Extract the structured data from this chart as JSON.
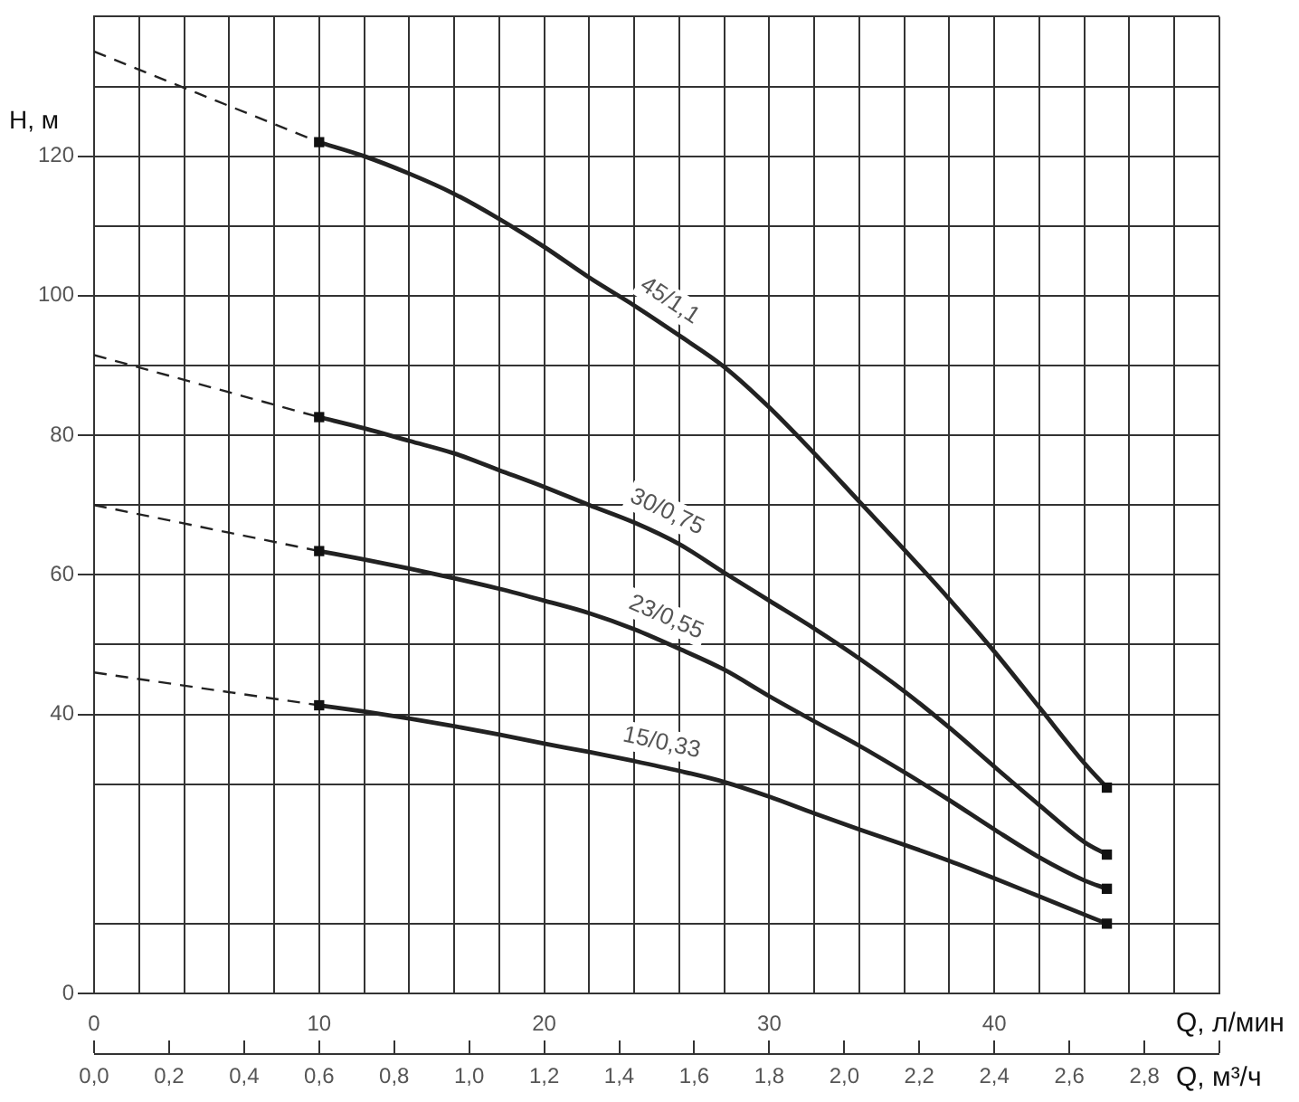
{
  "chart_data": {
    "type": "line",
    "ylabel": "H, м",
    "xlabel": "Q, л/мин",
    "x2label": "Q, м³/ч",
    "xlim": [
      0,
      50
    ],
    "xticks": [
      0,
      {
        "value": 2,
        "label": null
      },
      {
        "value": 4,
        "label": null
      },
      {
        "value": 6,
        "label": null
      },
      {
        "value": 8,
        "label": null
      },
      10,
      {
        "value": 12,
        "label": null
      },
      {
        "value": 14,
        "label": null
      },
      {
        "value": 16,
        "label": null
      },
      {
        "value": 18,
        "label": null
      },
      20,
      {
        "value": 22,
        "label": null
      },
      {
        "value": 24,
        "label": null
      },
      {
        "value": 26,
        "label": null
      },
      {
        "value": 28,
        "label": null
      },
      30,
      {
        "value": 32,
        "label": null
      },
      {
        "value": 34,
        "label": null
      },
      {
        "value": 36,
        "label": null
      },
      {
        "value": 38,
        "label": null
      },
      40,
      {
        "value": 42,
        "label": null
      },
      {
        "value": 44,
        "label": null
      },
      {
        "value": 46,
        "label": null
      },
      {
        "value": 48,
        "label": null
      },
      {
        "value": 50,
        "label": null
      }
    ],
    "x2lim": [
      0,
      3
    ],
    "x2ticks": [
      {
        "value": 0,
        "label": "0,0"
      },
      {
        "value": 0.2,
        "label": "0,2"
      },
      {
        "value": 0.4,
        "label": "0,4"
      },
      {
        "value": 0.6,
        "label": "0,6"
      },
      {
        "value": 0.8,
        "label": "0,8"
      },
      {
        "value": 1,
        "label": "1,0"
      },
      {
        "value": 1.2,
        "label": "1,2"
      },
      {
        "value": 1.4,
        "label": "1,4"
      },
      {
        "value": 1.6,
        "label": "1,6"
      },
      {
        "value": 1.8,
        "label": "1,8"
      },
      {
        "value": 2,
        "label": "2,0"
      },
      {
        "value": 2.2,
        "label": "2,2"
      },
      {
        "value": 2.4,
        "label": "2,4"
      },
      {
        "value": 2.6,
        "label": "2,6"
      },
      {
        "value": 2.8,
        "label": "2,8"
      },
      {
        "value": 3,
        "label": null
      }
    ],
    "ylim": [
      0,
      140
    ],
    "yticks": [
      0,
      {
        "value": 10,
        "label": null
      },
      {
        "value": 30,
        "label": null
      },
      40,
      {
        "value": 50,
        "label": null
      },
      60,
      {
        "value": 70,
        "label": null
      },
      80,
      {
        "value": 90,
        "label": null
      },
      100,
      {
        "value": 110,
        "label": null
      },
      120,
      {
        "value": 130,
        "label": null
      },
      {
        "value": 140,
        "label": null
      }
    ],
    "grid": true,
    "marker": "none",
    "series": [
      {
        "name": "45/1,1",
        "color": "#222222",
        "x": [
          10,
          12,
          14,
          16,
          18,
          20,
          22,
          24,
          26,
          28,
          30,
          32,
          34,
          36,
          38,
          40,
          42,
          44,
          45
        ],
        "values": [
          122,
          120,
          117.5,
          114.6,
          111,
          107,
          102.6,
          98.6,
          94.3,
          89.8,
          84,
          77.4,
          70.5,
          63.6,
          56.5,
          49,
          41,
          33,
          29.5
        ]
      },
      {
        "name": "30/0,75",
        "color": "#222222",
        "x": [
          10,
          12,
          14,
          16,
          18,
          20,
          22,
          24,
          26,
          28,
          30,
          32,
          34,
          36,
          38,
          40,
          42,
          44,
          45
        ],
        "values": [
          82.6,
          81,
          79.2,
          77.4,
          75,
          72.6,
          70,
          67.5,
          64.4,
          60.3,
          56.3,
          52.3,
          48,
          43.3,
          38.1,
          32.5,
          27,
          21.7,
          19.9
        ]
      },
      {
        "name": "23/0,55",
        "color": "#222222",
        "x": [
          10,
          12,
          14,
          16,
          18,
          20,
          22,
          24,
          26,
          28,
          30,
          32,
          34,
          36,
          38,
          40,
          42,
          44,
          45
        ],
        "values": [
          63.4,
          62.2,
          60.9,
          59.5,
          58,
          56.3,
          54.5,
          52.2,
          49.4,
          46.4,
          42.6,
          39,
          35.5,
          31.7,
          27.7,
          23.5,
          19.5,
          16.2,
          15
        ]
      },
      {
        "name": "15/0,33",
        "color": "#222222",
        "x": [
          10,
          12,
          14,
          16,
          18,
          20,
          22,
          24,
          26,
          28,
          30,
          32,
          34,
          36,
          38,
          40,
          42,
          44,
          45
        ],
        "values": [
          41.3,
          40.4,
          39.4,
          38.3,
          37.1,
          35.8,
          34.6,
          33.3,
          31.9,
          30.3,
          28.2,
          25.8,
          23.5,
          21.3,
          19,
          16.5,
          13.9,
          11.3,
          10
        ]
      },
      {
        "color": "#222222",
        "line_style": "dashed",
        "x": [
          0,
          10
        ],
        "values": [
          135,
          122
        ]
      },
      {
        "color": "#222222",
        "line_style": "dashed",
        "x": [
          0,
          10
        ],
        "values": [
          91.5,
          82.6
        ]
      },
      {
        "color": "#222222",
        "line_style": "dashed",
        "x": [
          0,
          10
        ],
        "values": [
          70,
          63.4
        ]
      },
      {
        "color": "#222222",
        "line_style": "dashed",
        "x": [
          0,
          10
        ],
        "values": [
          46,
          41.3
        ]
      },
      {
        "type": "scatter",
        "marker": "square",
        "color": "#111111",
        "x": [
          10,
          10,
          10,
          10,
          45,
          45,
          45,
          45
        ],
        "values": [
          122,
          82.6,
          63.4,
          41.3,
          29.5,
          19.9,
          15,
          10
        ]
      }
    ]
  }
}
